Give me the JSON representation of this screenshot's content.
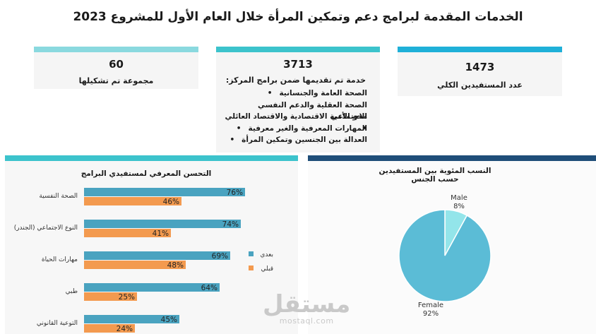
{
  "title": "الخدمات المقدمة لبرامج دعم وتمكين المرأة خلال العام الأول للمشروع 2023",
  "colors": {
    "teal_light": "#8ad9df",
    "teal": "#3cc3cc",
    "blue": "#1fb0d8",
    "navy": "#1f4e79",
    "bar_after": "#4aa3c0",
    "bar_before": "#f39a4f",
    "pie_female": "#5bbcd6",
    "pie_male": "#93e5ea"
  },
  "cards": [
    {
      "number": "60",
      "label": "مجموعة تم تشكيلها"
    },
    {
      "number": "3713",
      "label": "خدمة تم تقديمها ضمن برامج المركز:",
      "items": [
        "الصحة العامة والجنسانية",
        "الصحة العقلية والدعم النفسي الاجتماعي",
        "محو الأمية الاقتصادية والاقتصاد العائلي",
        "المهارات المعرفية والغير معرفية",
        "العدالة بين الجنسين وتمكين المرأة"
      ]
    },
    {
      "number": "1473",
      "label": "عدد المستفيدين الكلي"
    }
  ],
  "chart_data": [
    {
      "type": "bar",
      "title": "التحسن المعرفي لمستفيدي البرامج",
      "categories": [
        "الصحة النفسية",
        "النوع الاجتماعي (الجندر)",
        "مهارات الحياة",
        "طبي",
        "التوعية القانوني"
      ],
      "series": [
        {
          "name": "بعدي",
          "values": [
            76,
            74,
            69,
            64,
            45
          ]
        },
        {
          "name": "قبلي",
          "values": [
            46,
            41,
            48,
            25,
            24
          ]
        }
      ],
      "value_suffix": "%",
      "xlim": [
        0,
        100
      ],
      "legend": "right"
    },
    {
      "type": "pie",
      "title": "النسب المئوية بين المستفيدين حسب الجنس",
      "slices": [
        {
          "label": "Male",
          "value": 8,
          "display": "8%"
        },
        {
          "label": "Female",
          "value": 92,
          "display": "92%"
        }
      ]
    }
  ],
  "watermark": {
    "arabic": "مستقل",
    "latin": "mostaql.com"
  }
}
